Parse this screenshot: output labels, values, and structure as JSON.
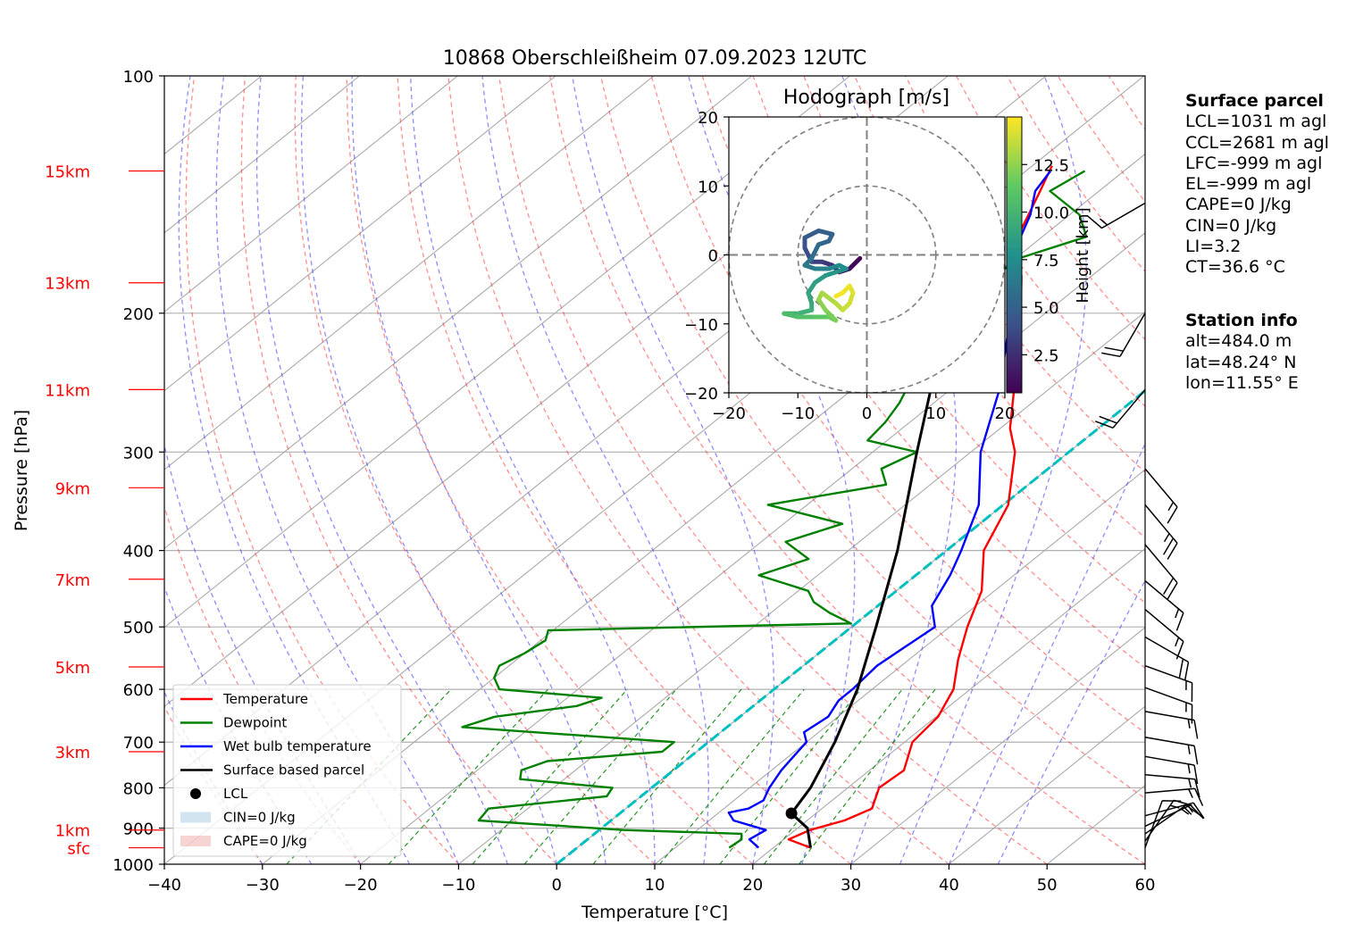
{
  "chart_data": {
    "type": "line",
    "title": "10868 Oberschleißheim 07.09.2023 12UTC",
    "xlabel": "Temperature [°C]",
    "ylabel": "Pressure [hPa]",
    "xlim": [
      -40,
      60
    ],
    "ylim": [
      1000,
      100
    ],
    "y_scale": "log",
    "grid": true,
    "x_ticks": [
      -40,
      -30,
      -20,
      -10,
      0,
      10,
      20,
      30,
      40,
      50,
      60
    ],
    "x_tick_labels": [
      "−40",
      "−30",
      "−20",
      "−10",
      "0",
      "10",
      "20",
      "30",
      "40",
      "50",
      "60"
    ],
    "y_ticks": [
      1000,
      900,
      800,
      700,
      600,
      500,
      400,
      300,
      200,
      100
    ],
    "y_tick_labels": [
      "1000",
      "900",
      "800",
      "700",
      "600",
      "500",
      "400",
      "300",
      "200",
      "100"
    ],
    "height_markers": [
      {
        "label": "sfc",
        "p": 953
      },
      {
        "label": "1km",
        "p": 905
      },
      {
        "label": "3km",
        "p": 720
      },
      {
        "label": "5km",
        "p": 562
      },
      {
        "label": "7km",
        "p": 435
      },
      {
        "label": "9km",
        "p": 333
      },
      {
        "label": "11km",
        "p": 250
      },
      {
        "label": "13km",
        "p": 183
      },
      {
        "label": "15km",
        "p": 132
      }
    ],
    "series": [
      {
        "name": "Temperature",
        "color": "#ff0000",
        "p": [
          953,
          930,
          905,
          880,
          850,
          800,
          760,
          700,
          650,
          600,
          550,
          500,
          450,
          400,
          350,
          300,
          280,
          250,
          230,
          200,
          180,
          160,
          140,
          130
        ],
        "t": [
          23.8,
          20.5,
          21.5,
          23.8,
          25.1,
          23.2,
          23.5,
          20.8,
          20.2,
          18.3,
          15.0,
          11.8,
          8.7,
          3.8,
          0.5,
          -5.5,
          -9.0,
          -13.5,
          -17.0,
          -22.5,
          -27.0,
          -32.5,
          -36.0,
          -38.0
        ]
      },
      {
        "name": "Dewpoint",
        "color": "#008000",
        "p": [
          953,
          930,
          915,
          905,
          880,
          850,
          820,
          800,
          780,
          760,
          740,
          720,
          700,
          670,
          650,
          630,
          615,
          600,
          580,
          560,
          540,
          520,
          505,
          495,
          480,
          465,
          450,
          430,
          410,
          390,
          370,
          350,
          330,
          315,
          300,
          290,
          275,
          260,
          245,
          230,
          220,
          210,
          200,
          190,
          180,
          170,
          160,
          150,
          140,
          132
        ],
        "td": [
          15.5,
          15.7,
          15.0,
          2.5,
          -13.5,
          -14.0,
          -3.5,
          -4.0,
          -14.5,
          -15.5,
          -14.0,
          -3.5,
          -3.5,
          -27.0,
          -25.0,
          -18.0,
          -16.5,
          -28.0,
          -30.0,
          -31.0,
          -30.0,
          -29.5,
          -30.5,
          -0.5,
          -4.0,
          -7.0,
          -9.0,
          -16.0,
          -13.0,
          -17.5,
          -14.0,
          -24.0,
          -14.5,
          -17.0,
          -15.5,
          -22.0,
          -22.5,
          -23.5,
          -25.0,
          -28.5,
          -29.0,
          -27.5,
          -25.5,
          -29.0,
          -30.0,
          -29.5,
          -25.5,
          -29.0,
          -35.0,
          -34.0
        ]
      },
      {
        "name": "Wet bulb temperature",
        "color": "#0000ff",
        "p": [
          953,
          930,
          905,
          880,
          860,
          850,
          830,
          800,
          760,
          730,
          700,
          680,
          650,
          620,
          600,
          560,
          500,
          470,
          430,
          400,
          350,
          300,
          250,
          200,
          170,
          150,
          140,
          132
        ],
        "tw": [
          18.5,
          16.5,
          17.0,
          12.5,
          11.0,
          12.5,
          13.0,
          12.0,
          11.0,
          10.5,
          10.0,
          8.5,
          9.0,
          8.0,
          8.0,
          7.5,
          8.5,
          5.5,
          3.5,
          1.5,
          -2.5,
          -9.0,
          -15.0,
          -23.5,
          -30.5,
          -34.0,
          -36.5,
          -37.5
        ]
      },
      {
        "name": "Surface based parcel",
        "color": "#000000",
        "p": [
          953,
          900,
          862,
          800,
          700,
          600,
          500,
          400,
          300,
          250,
          200,
          150,
          132
        ],
        "t": [
          23.8,
          21.0,
          17.5,
          16.2,
          12.9,
          8.5,
          2.5,
          -5.0,
          -15.5,
          -22.0,
          -30.5,
          -42.5,
          -48.5
        ]
      }
    ],
    "lcl": {
      "name": "LCL",
      "p": 862,
      "t": 17.5
    },
    "legend": {
      "location": "lower-left",
      "entries": [
        "Temperature",
        "Dewpoint",
        "Wet bulb temperature",
        "Surface based parcel",
        "LCL",
        "CIN=0 J/kg",
        "CAPE=0 J/kg"
      ]
    },
    "cin_color": "#1f77b4",
    "cape_color": "#d62728",
    "wind_barbs": [
      {
        "p": 953,
        "speed_kt": 10,
        "dir": 20
      },
      {
        "p": 935,
        "speed_kt": 15,
        "dir": 35
      },
      {
        "p": 915,
        "speed_kt": 15,
        "dir": 55
      },
      {
        "p": 895,
        "speed_kt": 15,
        "dir": 65
      },
      {
        "p": 868,
        "speed_kt": 15,
        "dir": 75
      },
      {
        "p": 812,
        "speed_kt": 15,
        "dir": 85
      },
      {
        "p": 770,
        "speed_kt": 15,
        "dir": 95
      },
      {
        "p": 730,
        "speed_kt": 15,
        "dir": 100
      },
      {
        "p": 690,
        "speed_kt": 15,
        "dir": 100
      },
      {
        "p": 640,
        "speed_kt": 15,
        "dir": 100
      },
      {
        "p": 597,
        "speed_kt": 15,
        "dir": 110
      },
      {
        "p": 560,
        "speed_kt": 15,
        "dir": 110
      },
      {
        "p": 515,
        "speed_kt": 20,
        "dir": 120
      },
      {
        "p": 475,
        "speed_kt": 15,
        "dir": 130
      },
      {
        "p": 437,
        "speed_kt": 15,
        "dir": 130
      },
      {
        "p": 393,
        "speed_kt": 20,
        "dir": 140
      },
      {
        "p": 350,
        "speed_kt": 25,
        "dir": 140
      },
      {
        "p": 315,
        "speed_kt": 15,
        "dir": 140
      },
      {
        "p": 250,
        "speed_kt": 20,
        "dir": 220
      },
      {
        "p": 200,
        "speed_kt": 20,
        "dir": 210
      },
      {
        "p": 145,
        "speed_kt": 15,
        "dir": 240
      }
    ],
    "hodograph": {
      "title": "Hodograph [m/s]",
      "xlim": [
        -20,
        20
      ],
      "ylim": [
        -20,
        20
      ],
      "ticks": [
        -20,
        -10,
        0,
        10,
        20
      ],
      "tick_labels": [
        "−20",
        "−10",
        "0",
        "10",
        "20"
      ],
      "rings": [
        10,
        20
      ],
      "colorbar_label": "Height [km]",
      "colorbar_ticks": [
        2.5,
        5.0,
        7.5,
        10.0,
        12.5
      ],
      "colorbar_tick_labels": [
        "2.5",
        "5.0",
        "7.5",
        "10.0",
        "12.5"
      ],
      "colorbar_range": [
        0.5,
        15
      ],
      "points": [
        {
          "u": -1.0,
          "v": -0.5,
          "z": 0.5
        },
        {
          "u": -2.5,
          "v": -2.0,
          "z": 1.0
        },
        {
          "u": -4.0,
          "v": -2.5,
          "z": 2.0
        },
        {
          "u": -5.0,
          "v": -1.5,
          "z": 2.5
        },
        {
          "u": -6.5,
          "v": -1.0,
          "z": 3.0
        },
        {
          "u": -8.0,
          "v": -1.0,
          "z": 3.5
        },
        {
          "u": -9.0,
          "v": 1.0,
          "z": 4.0
        },
        {
          "u": -9.0,
          "v": 2.5,
          "z": 4.5
        },
        {
          "u": -7.0,
          "v": 3.5,
          "z": 4.8
        },
        {
          "u": -5.0,
          "v": 3.0,
          "z": 5.0
        },
        {
          "u": -5.5,
          "v": 2.0,
          "z": 5.2
        },
        {
          "u": -7.0,
          "v": 1.5,
          "z": 5.4
        },
        {
          "u": -8.0,
          "v": -0.5,
          "z": 5.8
        },
        {
          "u": -9.0,
          "v": -1.5,
          "z": 6.2
        },
        {
          "u": -7.5,
          "v": -2.0,
          "z": 6.6
        },
        {
          "u": -5.5,
          "v": -2.0,
          "z": 7.0
        },
        {
          "u": -4.0,
          "v": -1.5,
          "z": 7.3
        },
        {
          "u": -3.0,
          "v": -2.0,
          "z": 7.6
        },
        {
          "u": -4.5,
          "v": -2.5,
          "z": 7.9
        },
        {
          "u": -6.0,
          "v": -3.0,
          "z": 8.2
        },
        {
          "u": -7.5,
          "v": -4.0,
          "z": 8.5
        },
        {
          "u": -8.5,
          "v": -5.5,
          "z": 8.8
        },
        {
          "u": -8.0,
          "v": -7.0,
          "z": 9.1
        },
        {
          "u": -8.0,
          "v": -8.0,
          "z": 9.4
        },
        {
          "u": -10.0,
          "v": -8.5,
          "z": 9.8
        },
        {
          "u": -12.0,
          "v": -8.5,
          "z": 10.2
        },
        {
          "u": -10.0,
          "v": -9.0,
          "z": 10.6
        },
        {
          "u": -7.5,
          "v": -9.0,
          "z": 11.0
        },
        {
          "u": -5.5,
          "v": -9.0,
          "z": 11.4
        },
        {
          "u": -4.5,
          "v": -9.5,
          "z": 11.8
        },
        {
          "u": -6.0,
          "v": -8.0,
          "z": 12.2
        },
        {
          "u": -7.0,
          "v": -6.5,
          "z": 12.6
        },
        {
          "u": -6.5,
          "v": -5.5,
          "z": 13.0
        },
        {
          "u": -4.5,
          "v": -7.0,
          "z": 13.3
        },
        {
          "u": -3.5,
          "v": -8.0,
          "z": 13.6
        },
        {
          "u": -2.5,
          "v": -7.0,
          "z": 13.9
        },
        {
          "u": -2.0,
          "v": -5.5,
          "z": 14.2
        },
        {
          "u": -2.5,
          "v": -4.5,
          "z": 14.5
        },
        {
          "u": -3.5,
          "v": -5.5,
          "z": 14.7
        },
        {
          "u": -4.5,
          "v": -6.0,
          "z": 14.9
        }
      ]
    }
  },
  "surface_parcel": {
    "heading": "Surface parcel",
    "lines": [
      "LCL=1031 m agl",
      "CCL=2681 m agl",
      "LFC=-999 m agl",
      "EL=-999 m agl",
      "CAPE=0 J/kg",
      "CIN=0 J/kg",
      "LI=3.2",
      "CT=36.6 °C"
    ]
  },
  "station_info": {
    "heading": "Station info",
    "lines": [
      "alt=484.0 m",
      "lat=48.24° N",
      "lon=11.55° E"
    ]
  }
}
